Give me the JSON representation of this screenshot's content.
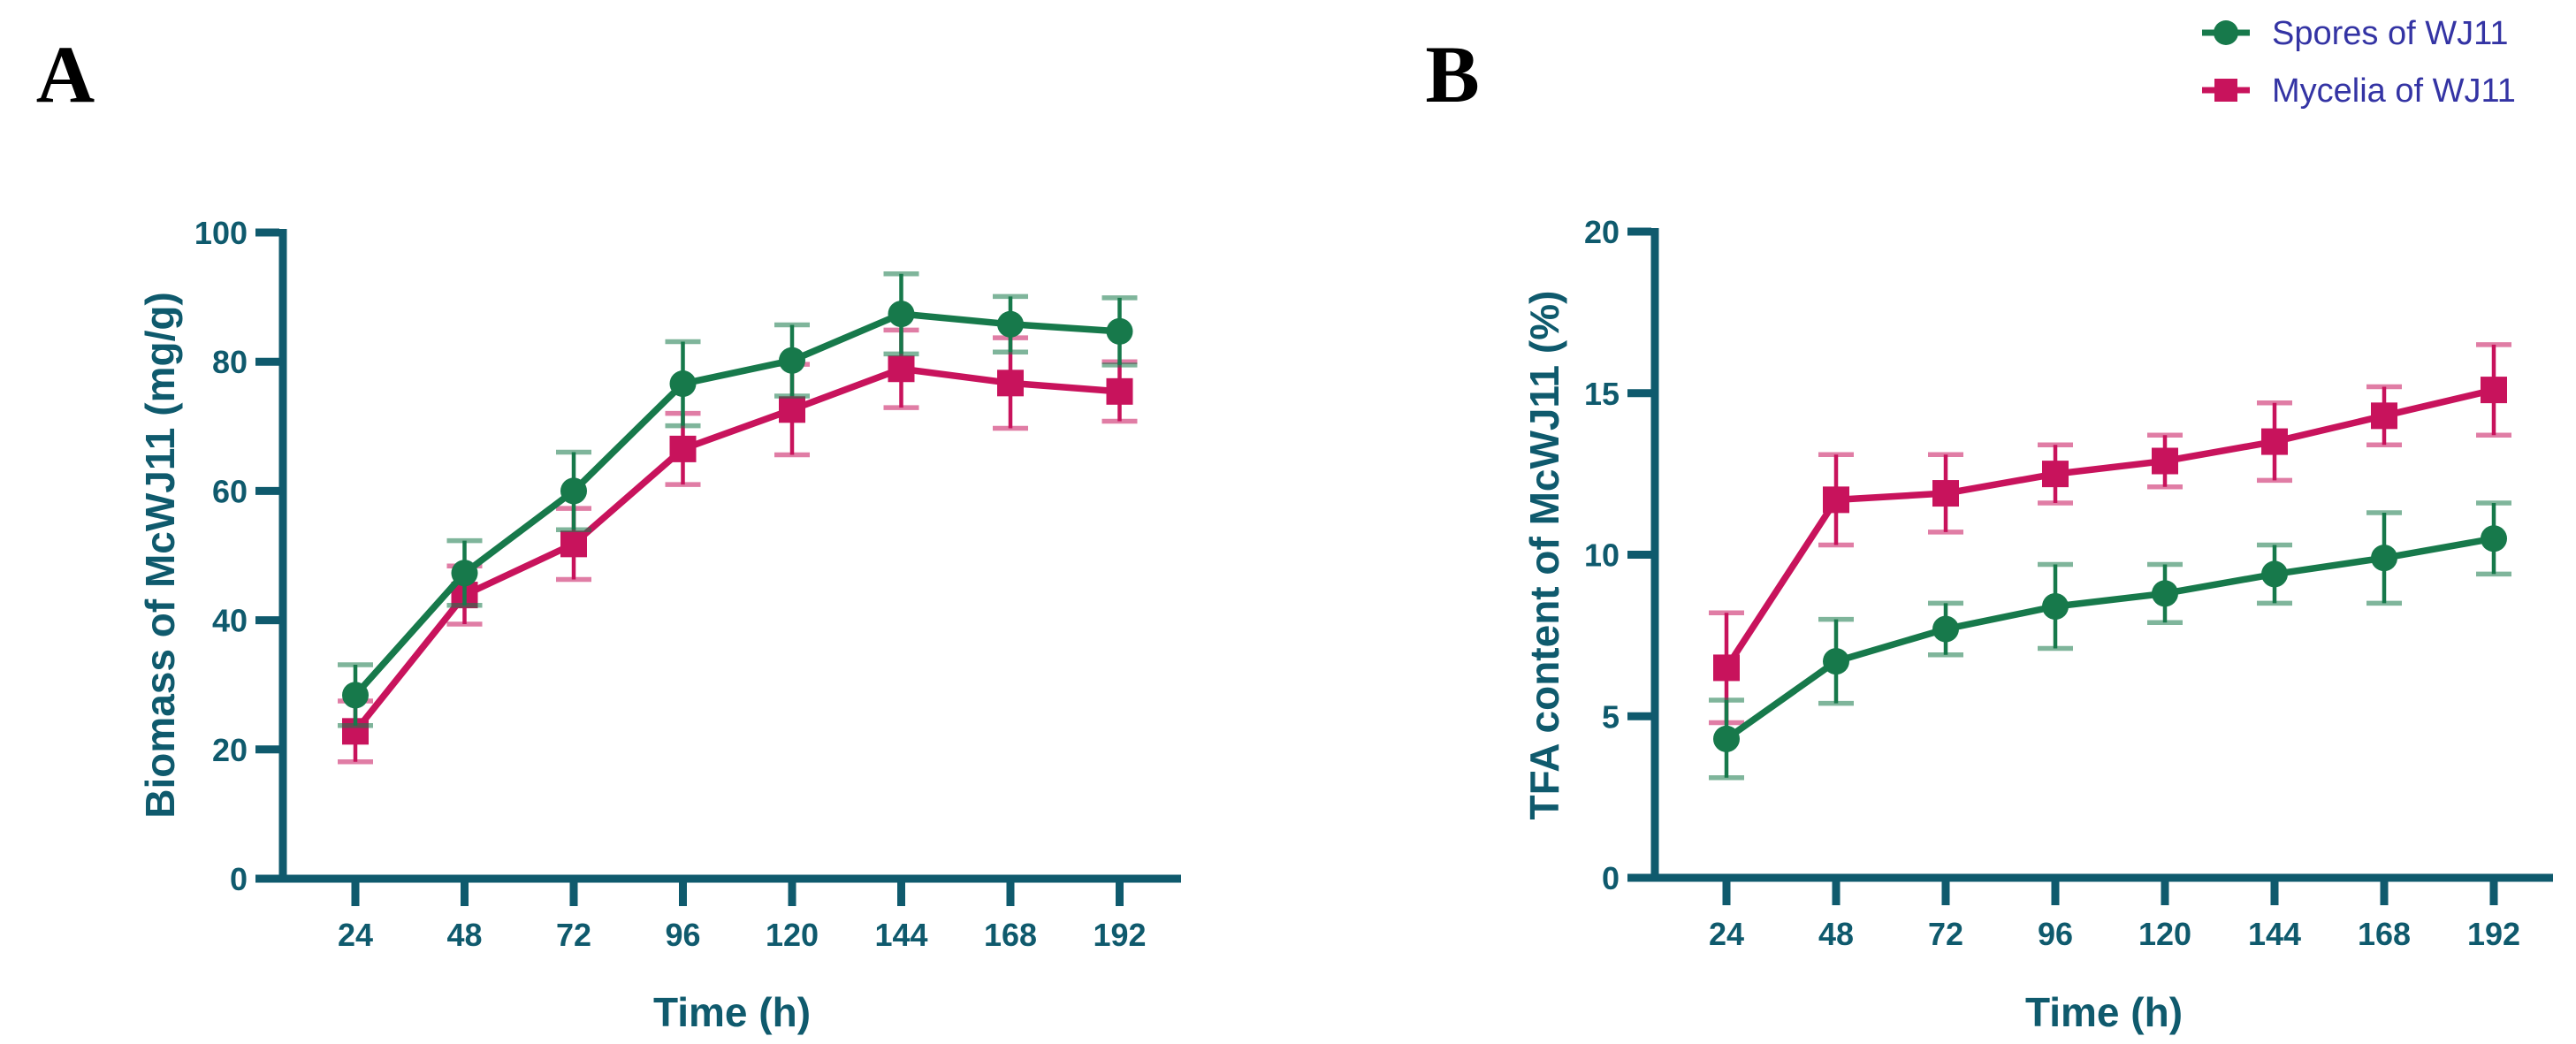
{
  "figure": {
    "background": "#ffffff",
    "axis_color": "#0F5A6D",
    "panel_letter_color": "#000000",
    "legend": {
      "position": "top-right",
      "text_color": "#3434A4",
      "items": [
        {
          "label": "Spores of WJ11",
          "marker": "circle",
          "color": "#17794B"
        },
        {
          "label": "Mycelia of WJ11",
          "marker": "square",
          "color": "#C8135C"
        }
      ]
    }
  },
  "chart_data": [
    {
      "type": "line",
      "panel_label": "A",
      "title": "",
      "xlabel": "Time (h)",
      "ylabel": "Biomass of McWJ11 (mg/g)",
      "x": [
        24,
        48,
        72,
        96,
        120,
        144,
        168,
        192
      ],
      "yticks": [
        0,
        20,
        40,
        60,
        80,
        100
      ],
      "ylim": [
        0,
        100
      ],
      "grid": false,
      "error_bars": true,
      "legend_position": "none",
      "series": [
        {
          "name": "Spores of WJ11",
          "marker": "circle",
          "color": "#17794B",
          "values": [
            28.4,
            47.3,
            60.0,
            76.6,
            80.2,
            87.4,
            85.8,
            84.7
          ],
          "errors": [
            4.7,
            5.0,
            6.0,
            6.5,
            5.5,
            6.2,
            4.3,
            5.2
          ]
        },
        {
          "name": "Mycelia of WJ11",
          "marker": "square",
          "color": "#C8135C",
          "values": [
            22.8,
            43.9,
            51.8,
            66.5,
            72.6,
            78.9,
            76.7,
            75.4
          ],
          "errors": [
            4.7,
            4.5,
            5.5,
            5.5,
            7.0,
            6.0,
            7.0,
            4.6
          ]
        }
      ]
    },
    {
      "type": "line",
      "panel_label": "B",
      "title": "",
      "xlabel": "Time (h)",
      "ylabel": "TFA content of McWJ11 (%)",
      "x": [
        24,
        48,
        72,
        96,
        120,
        144,
        168,
        192
      ],
      "yticks": [
        0,
        5,
        10,
        15,
        20
      ],
      "ylim": [
        0,
        20
      ],
      "grid": false,
      "error_bars": true,
      "legend_position": "top-right",
      "series": [
        {
          "name": "Spores of WJ11",
          "marker": "circle",
          "color": "#17794B",
          "values": [
            4.3,
            6.7,
            7.7,
            8.4,
            8.8,
            9.4,
            9.9,
            10.5
          ],
          "errors": [
            1.2,
            1.3,
            0.8,
            1.3,
            0.9,
            0.9,
            1.4,
            1.1
          ]
        },
        {
          "name": "Mycelia of WJ11",
          "marker": "square",
          "color": "#C8135C",
          "values": [
            6.5,
            11.7,
            11.9,
            12.5,
            12.9,
            13.5,
            14.3,
            15.1
          ],
          "errors": [
            1.7,
            1.4,
            1.2,
            0.9,
            0.8,
            1.2,
            0.9,
            1.4
          ]
        }
      ]
    }
  ]
}
